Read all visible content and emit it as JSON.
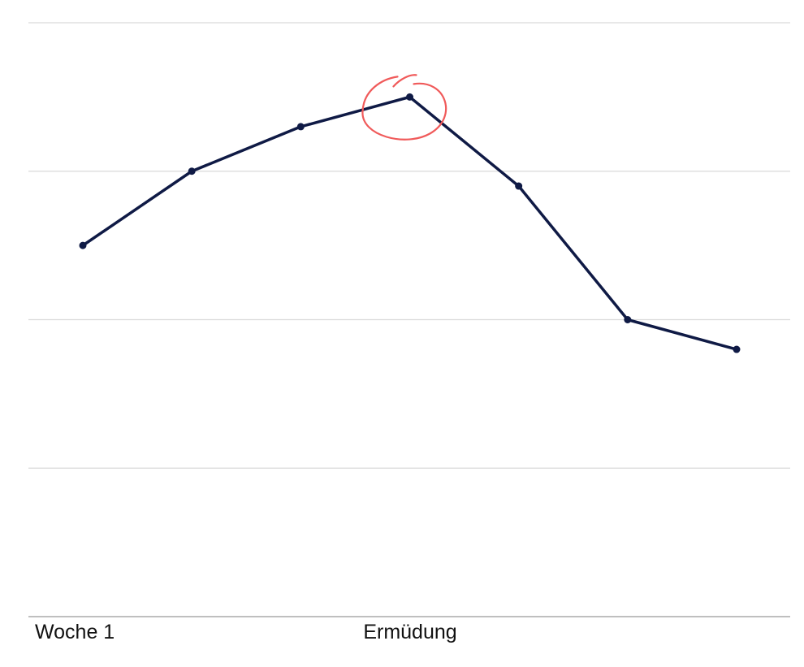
{
  "colors": {
    "line": "#0f1a45",
    "grid": "#d9d9d9",
    "axis": "#999999",
    "highlight": "#f05a5a",
    "label": "#111111"
  },
  "chart_data": {
    "type": "line",
    "title": "",
    "xlabel": "",
    "ylabel": "",
    "grid": true,
    "y_gridlines": [
      1,
      2,
      3,
      4
    ],
    "ylim": [
      0,
      4
    ],
    "x": [
      1,
      2,
      3,
      4,
      5,
      6,
      7
    ],
    "series": [
      {
        "values": [
          2.5,
          3.0,
          3.3,
          3.5,
          2.9,
          2.0,
          1.8
        ],
        "highlight_index": 3,
        "highlight_icon": "hand-drawn-circle"
      }
    ],
    "annotations": {
      "start_label": "Woche 1",
      "center_label": "Ermüdung"
    }
  }
}
